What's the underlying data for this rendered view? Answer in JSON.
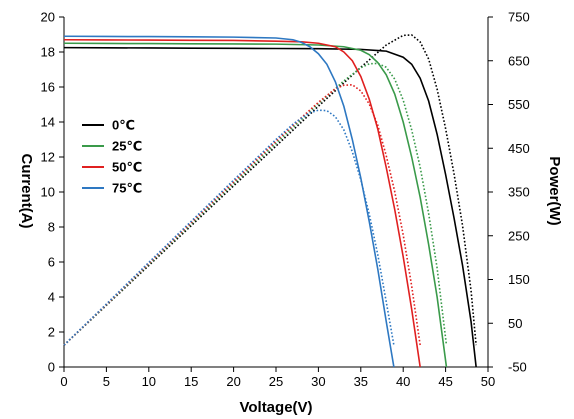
{
  "chart_data": {
    "type": "line",
    "xlabel": "Voltage(V)",
    "ylabel_left": "Current(A)",
    "ylabel_right": "Power(W)",
    "xlim": [
      0,
      50
    ],
    "ylim_left": [
      0,
      20
    ],
    "ylim_right": [
      -50,
      750
    ],
    "x_ticks": [
      "0",
      "5",
      "10",
      "15",
      "20",
      "25",
      "30",
      "35",
      "40",
      "45",
      "50"
    ],
    "y_left_ticks": [
      "0",
      "2",
      "4",
      "6",
      "8",
      "10",
      "12",
      "14",
      "16",
      "18",
      "20"
    ],
    "y_right_ticks": [
      "-50",
      "50",
      "150",
      "250",
      "350",
      "450",
      "550",
      "650",
      "750"
    ],
    "grid": false,
    "legend_position": "left",
    "series": [
      {
        "name": "0℃",
        "color": "#000000",
        "current": {
          "x": [
            0,
            5,
            10,
            15,
            20,
            25,
            30,
            35,
            38,
            40,
            41,
            42,
            43,
            44,
            45,
            46,
            47,
            48,
            48.6
          ],
          "y": [
            18.25,
            18.24,
            18.23,
            18.22,
            18.21,
            18.2,
            18.19,
            18.15,
            18.05,
            17.7,
            17.3,
            16.5,
            15.2,
            13.3,
            11.0,
            8.5,
            5.8,
            2.6,
            0
          ]
        },
        "power": {
          "x": [
            0,
            5,
            10,
            15,
            20,
            25,
            30,
            35,
            38,
            40,
            41,
            42,
            43,
            44,
            45,
            46,
            47,
            48,
            48.6
          ],
          "y": [
            0,
            91,
            182,
            273,
            364,
            455,
            546,
            635,
            686,
            708,
            709,
            693,
            654,
            585,
            495,
            391,
            273,
            125,
            0
          ]
        }
      },
      {
        "name": "25℃",
        "color": "#3a9a4a",
        "current": {
          "x": [
            0,
            5,
            10,
            15,
            20,
            25,
            30,
            33,
            35,
            36,
            37,
            38,
            39,
            40,
            41,
            42,
            43,
            44,
            45.1
          ],
          "y": [
            18.5,
            18.49,
            18.48,
            18.47,
            18.46,
            18.45,
            18.4,
            18.3,
            18.1,
            17.85,
            17.4,
            16.7,
            15.6,
            14.0,
            12.0,
            9.7,
            7.0,
            4.0,
            0
          ]
        },
        "power": {
          "x": [
            0,
            5,
            10,
            15,
            20,
            25,
            30,
            33,
            35,
            36,
            37,
            38,
            39,
            40,
            41,
            42,
            43,
            44,
            45.1
          ],
          "y": [
            0,
            92,
            185,
            277,
            369,
            461,
            552,
            604,
            634,
            643,
            644,
            635,
            608,
            560,
            492,
            407,
            301,
            176,
            0
          ]
        }
      },
      {
        "name": "50℃",
        "color": "#e02020",
        "current": {
          "x": [
            0,
            5,
            10,
            15,
            20,
            25,
            28,
            30,
            32,
            33,
            34,
            35,
            36,
            37,
            38,
            39,
            40,
            41,
            42
          ],
          "y": [
            18.7,
            18.69,
            18.68,
            18.67,
            18.66,
            18.62,
            18.58,
            18.5,
            18.3,
            18.0,
            17.5,
            16.6,
            15.3,
            13.6,
            11.4,
            9.0,
            6.3,
            3.3,
            0
          ]
        },
        "power": {
          "x": [
            0,
            5,
            10,
            15,
            20,
            25,
            28,
            30,
            32,
            33,
            34,
            35,
            36,
            37,
            38,
            39,
            40,
            41,
            42
          ],
          "y": [
            0,
            93,
            187,
            280,
            373,
            466,
            520,
            555,
            586,
            594,
            595,
            581,
            551,
            503,
            433,
            351,
            252,
            135,
            0
          ]
        }
      },
      {
        "name": "75℃",
        "color": "#2e78c2",
        "current": {
          "x": [
            0,
            5,
            10,
            15,
            20,
            25,
            27,
            28,
            29,
            30,
            31,
            32,
            33,
            34,
            35,
            36,
            37,
            38,
            38.9
          ],
          "y": [
            18.9,
            18.89,
            18.88,
            18.87,
            18.85,
            18.8,
            18.7,
            18.55,
            18.3,
            17.9,
            17.3,
            16.3,
            14.9,
            13.0,
            10.8,
            8.3,
            5.6,
            2.6,
            0
          ]
        },
        "power": {
          "x": [
            0,
            5,
            10,
            15,
            20,
            25,
            27,
            28,
            29,
            30,
            31,
            32,
            33,
            34,
            35,
            36,
            37,
            38,
            38.9
          ],
          "y": [
            0,
            94,
            189,
            283,
            377,
            470,
            505,
            519,
            531,
            537,
            536,
            522,
            492,
            442,
            378,
            299,
            207,
            99,
            0
          ]
        }
      }
    ]
  }
}
